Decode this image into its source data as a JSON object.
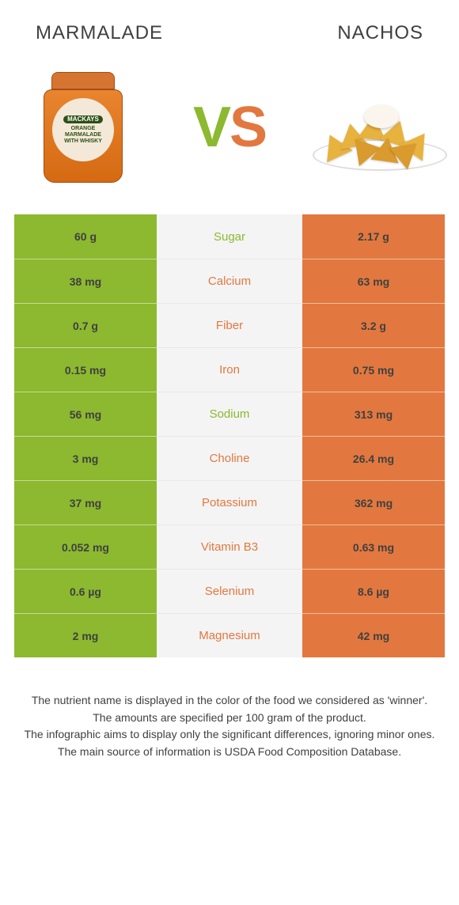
{
  "header": {
    "left_title": "MARMALADE",
    "right_title": "NACHOS"
  },
  "vs": {
    "v_color": "#8cb92f",
    "s_color": "#e2783f"
  },
  "colors": {
    "left_food": "#8cb92f",
    "right_food": "#e2783f",
    "row_bg_left_on": "#8cb92f",
    "row_bg_right_on": "#e2783f",
    "row_bg_off": "#f4f4f4",
    "text_dark": "#404040"
  },
  "jar_label": {
    "brand": "MACKAYS",
    "line1": "ORANGE",
    "line2": "MARMALADE",
    "line3": "WITH WHISKY"
  },
  "rows": [
    {
      "nutrient": "Sugar",
      "left_val": "60 g",
      "right_val": "2.17 g",
      "winner": "left"
    },
    {
      "nutrient": "Calcium",
      "left_val": "38 mg",
      "right_val": "63 mg",
      "winner": "right"
    },
    {
      "nutrient": "Fiber",
      "left_val": "0.7 g",
      "right_val": "3.2 g",
      "winner": "right"
    },
    {
      "nutrient": "Iron",
      "left_val": "0.15 mg",
      "right_val": "0.75 mg",
      "winner": "right"
    },
    {
      "nutrient": "Sodium",
      "left_val": "56 mg",
      "right_val": "313 mg",
      "winner": "left"
    },
    {
      "nutrient": "Choline",
      "left_val": "3 mg",
      "right_val": "26.4 mg",
      "winner": "right"
    },
    {
      "nutrient": "Potassium",
      "left_val": "37 mg",
      "right_val": "362 mg",
      "winner": "right"
    },
    {
      "nutrient": "Vitamin B3",
      "left_val": "0.052 mg",
      "right_val": "0.63 mg",
      "winner": "right"
    },
    {
      "nutrient": "Selenium",
      "left_val": "0.6 µg",
      "right_val": "8.6 µg",
      "winner": "right"
    },
    {
      "nutrient": "Magnesium",
      "left_val": "2 mg",
      "right_val": "42 mg",
      "winner": "right"
    }
  ],
  "footer": {
    "line1": "The nutrient name is displayed in the color of the food we considered as 'winner'.",
    "line2": "The amounts are specified per 100 gram of the product.",
    "line3": "The infographic aims to display only the significant differences, ignoring minor ones.",
    "line4": "The main source of information is USDA Food Composition Database."
  }
}
